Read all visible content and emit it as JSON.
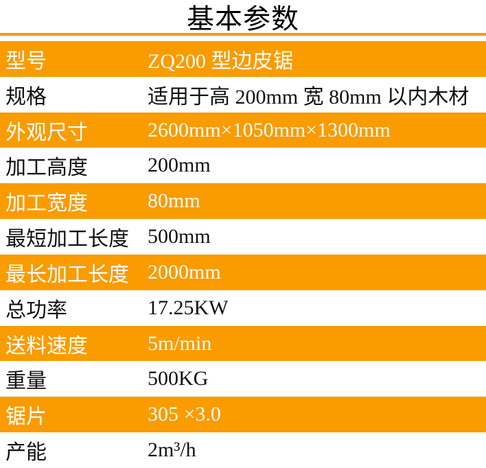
{
  "page": {
    "title": "基本参数"
  },
  "colors": {
    "accent_orange": "#FA9B00",
    "text_on_orange": "#FFFFFF",
    "text_on_white": "#111111"
  },
  "table": {
    "rows": [
      {
        "label": "型号",
        "value": "ZQ200 型边皮锯"
      },
      {
        "label": "规格",
        "value": "适用于高 200mm 宽 80mm 以内木材"
      },
      {
        "label": "外观尺寸",
        "value": "2600mm×1050mm×1300mm"
      },
      {
        "label": "加工高度",
        "value": "200mm"
      },
      {
        "label": "加工宽度",
        "value": "80mm"
      },
      {
        "label": "最短加工长度",
        "value": "500mm"
      },
      {
        "label": "最长加工长度",
        "value": "2000mm"
      },
      {
        "label": "总功率",
        "value": "17.25KW"
      },
      {
        "label": "送料速度",
        "value": "5m/min"
      },
      {
        "label": "重量",
        "value": "500KG"
      },
      {
        "label": "锯片",
        "value": "305 ×3.0"
      },
      {
        "label": "产能",
        "value": "2m³/h"
      }
    ]
  }
}
